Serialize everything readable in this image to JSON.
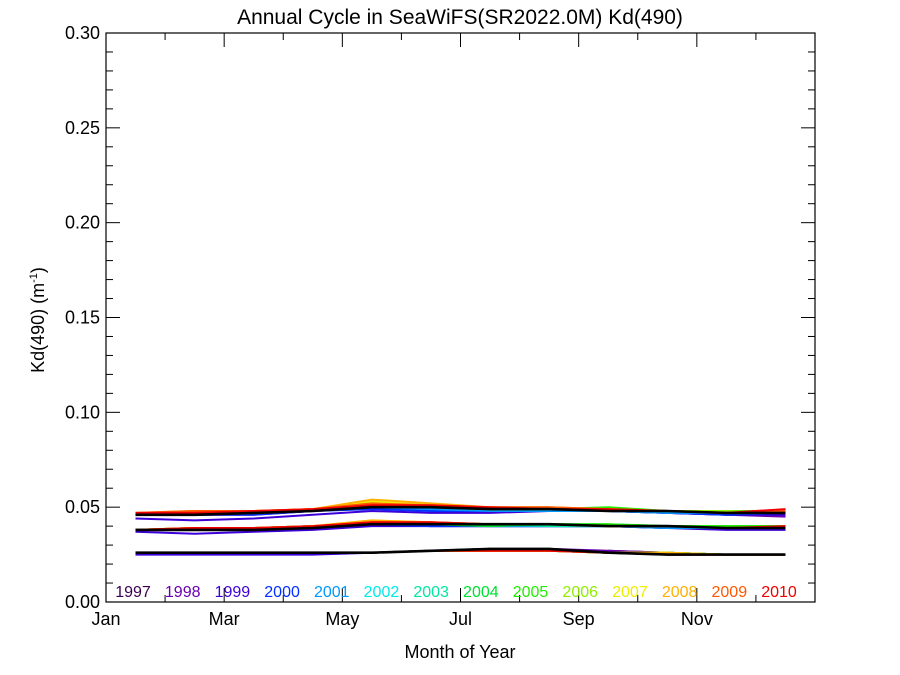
{
  "chart_data": {
    "type": "line",
    "title": "Annual Cycle in SeaWiFS(SR2022.0M) Kd(490)",
    "xlabel": "Month of Year",
    "ylabel_main": "Kd(490) (m",
    "ylabel_sup": "-1",
    "ylabel_close": ")",
    "xlim": [
      0,
      12
    ],
    "ylim": [
      0,
      0.3
    ],
    "x_ticks": [
      {
        "value": 0,
        "label": "Jan"
      },
      {
        "value": 2,
        "label": "Mar"
      },
      {
        "value": 4,
        "label": "May"
      },
      {
        "value": 6,
        "label": "Jul"
      },
      {
        "value": 8,
        "label": "Sep"
      },
      {
        "value": 10,
        "label": "Nov"
      }
    ],
    "x_minor_ticks": [
      1,
      3,
      5,
      7,
      9,
      11
    ],
    "y_ticks": [
      {
        "value": 0.0,
        "label": "0.00"
      },
      {
        "value": 0.05,
        "label": "0.05"
      },
      {
        "value": 0.1,
        "label": "0.10"
      },
      {
        "value": 0.15,
        "label": "0.15"
      },
      {
        "value": 0.2,
        "label": "0.20"
      },
      {
        "value": 0.25,
        "label": "0.25"
      },
      {
        "value": 0.3,
        "label": "0.30"
      }
    ],
    "y_minor_step": 0.01,
    "x": [
      0.5,
      1.5,
      2.5,
      3.5,
      4.5,
      5.5,
      6.5,
      7.5,
      8.5,
      9.5,
      10.5,
      11.5
    ],
    "legend_position": "bottom",
    "series": [
      {
        "name": "1997",
        "color": "#3a0050",
        "groups": [
          [
            null,
            null,
            null,
            null,
            null,
            null,
            null,
            null,
            0.049,
            0.048,
            0.046,
            0.046
          ],
          [
            null,
            null,
            null,
            null,
            null,
            null,
            null,
            null,
            0.04,
            0.04,
            0.039,
            0.039
          ],
          [
            null,
            null,
            null,
            null,
            null,
            null,
            null,
            null,
            0.027,
            0.026,
            0.025,
            0.025
          ]
        ]
      },
      {
        "name": "1998",
        "color": "#6a00b0",
        "groups": [
          [
            0.046,
            0.046,
            0.046,
            0.048,
            0.05,
            0.049,
            0.048,
            0.049,
            0.048,
            0.047,
            0.046,
            0.045
          ],
          [
            0.038,
            0.038,
            0.038,
            0.039,
            0.041,
            0.04,
            0.04,
            0.04,
            0.04,
            0.04,
            0.039,
            0.039
          ],
          [
            0.026,
            0.026,
            0.026,
            0.026,
            0.026,
            0.027,
            0.028,
            0.028,
            0.027,
            0.026,
            0.025,
            0.025
          ]
        ]
      },
      {
        "name": "1999",
        "color": "#3c00d8",
        "groups": [
          [
            0.044,
            0.043,
            0.044,
            0.046,
            0.048,
            0.047,
            0.047,
            0.048,
            0.048,
            0.047,
            0.046,
            0.046
          ],
          [
            0.037,
            0.036,
            0.037,
            0.038,
            0.04,
            0.04,
            0.04,
            0.04,
            0.04,
            0.039,
            0.038,
            0.038
          ],
          [
            0.025,
            0.025,
            0.025,
            0.025,
            0.026,
            0.027,
            0.027,
            0.027,
            0.026,
            0.025,
            0.025,
            0.025
          ]
        ]
      },
      {
        "name": "2000",
        "color": "#0030ff",
        "groups": [
          [
            0.046,
            0.046,
            0.046,
            0.048,
            0.049,
            0.048,
            0.048,
            0.048,
            0.048,
            0.047,
            0.046,
            0.047
          ],
          [
            0.038,
            0.038,
            0.038,
            0.039,
            0.041,
            0.04,
            0.04,
            0.04,
            0.04,
            0.039,
            0.039,
            0.039
          ],
          [
            0.026,
            0.026,
            0.026,
            0.026,
            0.026,
            0.027,
            0.028,
            0.027,
            0.026,
            0.026,
            0.025,
            0.025
          ]
        ]
      },
      {
        "name": "2001",
        "color": "#0098ff",
        "groups": [
          [
            0.046,
            0.046,
            0.047,
            0.048,
            0.05,
            0.049,
            0.048,
            0.048,
            0.048,
            0.047,
            0.047,
            0.047
          ],
          [
            0.038,
            0.038,
            0.038,
            0.039,
            0.041,
            0.041,
            0.04,
            0.04,
            0.04,
            0.039,
            0.039,
            0.039
          ],
          [
            0.026,
            0.026,
            0.026,
            0.026,
            0.026,
            0.027,
            0.027,
            0.027,
            0.026,
            0.026,
            0.025,
            0.025
          ]
        ]
      },
      {
        "name": "2002",
        "color": "#00eaea",
        "groups": [
          [
            0.046,
            0.047,
            0.047,
            0.048,
            0.051,
            0.05,
            0.049,
            0.049,
            0.048,
            0.048,
            0.047,
            0.047
          ],
          [
            0.038,
            0.039,
            0.039,
            0.04,
            0.042,
            0.041,
            0.041,
            0.041,
            0.04,
            0.04,
            0.039,
            0.039
          ],
          [
            0.026,
            0.026,
            0.026,
            0.026,
            0.026,
            0.027,
            0.028,
            0.027,
            0.026,
            0.026,
            0.025,
            0.025
          ]
        ]
      },
      {
        "name": "2003",
        "color": "#00e8a0",
        "groups": [
          [
            0.046,
            0.047,
            0.047,
            0.048,
            0.05,
            0.05,
            0.049,
            0.049,
            0.049,
            0.048,
            0.047,
            0.047
          ],
          [
            0.038,
            0.038,
            0.039,
            0.04,
            0.041,
            0.041,
            0.041,
            0.04,
            0.04,
            0.04,
            0.039,
            0.039
          ],
          [
            0.026,
            0.026,
            0.026,
            0.026,
            0.026,
            0.027,
            0.027,
            0.027,
            0.026,
            0.026,
            0.025,
            0.025
          ]
        ]
      },
      {
        "name": "2004",
        "color": "#00e030",
        "groups": [
          [
            0.046,
            0.047,
            0.047,
            0.048,
            0.05,
            0.05,
            0.049,
            0.049,
            0.049,
            0.048,
            0.048,
            0.048
          ],
          [
            0.038,
            0.038,
            0.039,
            0.04,
            0.041,
            0.041,
            0.04,
            0.041,
            0.041,
            0.04,
            0.04,
            0.04
          ],
          [
            0.026,
            0.026,
            0.026,
            0.026,
            0.026,
            0.027,
            0.027,
            0.027,
            0.026,
            0.026,
            0.025,
            0.025
          ]
        ]
      },
      {
        "name": "2005",
        "color": "#20ee00",
        "groups": [
          [
            0.046,
            0.047,
            0.047,
            0.048,
            0.051,
            0.05,
            0.049,
            0.049,
            0.05,
            0.048,
            0.048,
            0.048
          ],
          [
            0.038,
            0.039,
            0.039,
            0.04,
            0.042,
            0.041,
            0.041,
            0.041,
            0.041,
            0.04,
            0.04,
            0.04
          ],
          [
            0.026,
            0.026,
            0.026,
            0.026,
            0.026,
            0.027,
            0.027,
            0.027,
            0.026,
            0.026,
            0.025,
            0.025
          ]
        ]
      },
      {
        "name": "2006",
        "color": "#90ee00",
        "groups": [
          [
            0.046,
            0.047,
            0.047,
            0.048,
            0.051,
            0.05,
            0.049,
            0.049,
            0.049,
            0.048,
            0.048,
            0.047
          ],
          [
            0.038,
            0.039,
            0.039,
            0.04,
            0.042,
            0.041,
            0.041,
            0.041,
            0.04,
            0.04,
            0.039,
            0.039
          ],
          [
            0.026,
            0.026,
            0.026,
            0.026,
            0.026,
            0.027,
            0.027,
            0.027,
            0.026,
            0.026,
            0.025,
            0.025
          ]
        ]
      },
      {
        "name": "2007",
        "color": "#eeee00",
        "groups": [
          [
            0.046,
            0.047,
            0.048,
            0.049,
            0.053,
            0.051,
            0.05,
            0.049,
            0.049,
            0.048,
            0.047,
            0.047
          ],
          [
            0.038,
            0.039,
            0.039,
            0.04,
            0.043,
            0.042,
            0.041,
            0.041,
            0.04,
            0.04,
            0.039,
            0.039
          ],
          [
            0.026,
            0.026,
            0.026,
            0.026,
            0.026,
            0.027,
            0.027,
            0.027,
            0.026,
            0.026,
            0.025,
            0.025
          ]
        ]
      },
      {
        "name": "2008",
        "color": "#ffb000",
        "groups": [
          [
            0.047,
            0.048,
            0.048,
            0.049,
            0.054,
            0.052,
            0.05,
            0.05,
            0.049,
            0.048,
            0.047,
            0.047
          ],
          [
            0.038,
            0.039,
            0.039,
            0.04,
            0.043,
            0.042,
            0.041,
            0.041,
            0.04,
            0.04,
            0.039,
            0.039
          ],
          [
            0.026,
            0.026,
            0.026,
            0.026,
            0.026,
            0.027,
            0.027,
            0.027,
            0.026,
            0.026,
            0.025,
            0.025
          ]
        ]
      },
      {
        "name": "2009",
        "color": "#ff5800",
        "groups": [
          [
            0.047,
            0.048,
            0.048,
            0.049,
            0.052,
            0.051,
            0.05,
            0.05,
            0.049,
            0.048,
            0.047,
            0.048
          ],
          [
            0.038,
            0.039,
            0.039,
            0.04,
            0.042,
            0.042,
            0.041,
            0.041,
            0.04,
            0.04,
            0.039,
            0.039
          ],
          [
            0.026,
            0.026,
            0.026,
            0.026,
            0.026,
            0.027,
            0.027,
            0.027,
            0.026,
            0.025,
            0.025,
            0.025
          ]
        ]
      },
      {
        "name": "2010",
        "color": "#ee0000",
        "groups": [
          [
            0.047,
            0.047,
            0.048,
            0.049,
            0.051,
            0.051,
            0.05,
            0.049,
            0.049,
            0.048,
            0.047,
            0.049
          ],
          [
            0.038,
            0.039,
            0.039,
            0.04,
            0.042,
            0.042,
            0.041,
            0.041,
            0.04,
            0.04,
            0.039,
            0.04
          ],
          [
            0.026,
            0.026,
            0.026,
            0.026,
            0.026,
            0.027,
            0.027,
            0.027,
            0.026,
            0.025,
            0.025,
            0.025
          ]
        ]
      }
    ],
    "climatology": {
      "color": "#000000",
      "groups": [
        [
          0.046,
          0.046,
          0.047,
          0.048,
          0.05,
          0.05,
          0.049,
          0.049,
          0.048,
          0.048,
          0.047,
          0.047
        ],
        [
          0.038,
          0.038,
          0.038,
          0.039,
          0.041,
          0.041,
          0.041,
          0.041,
          0.04,
          0.04,
          0.039,
          0.039
        ],
        [
          0.026,
          0.026,
          0.026,
          0.026,
          0.026,
          0.027,
          0.028,
          0.028,
          0.026,
          0.025,
          0.025,
          0.025
        ]
      ]
    }
  }
}
